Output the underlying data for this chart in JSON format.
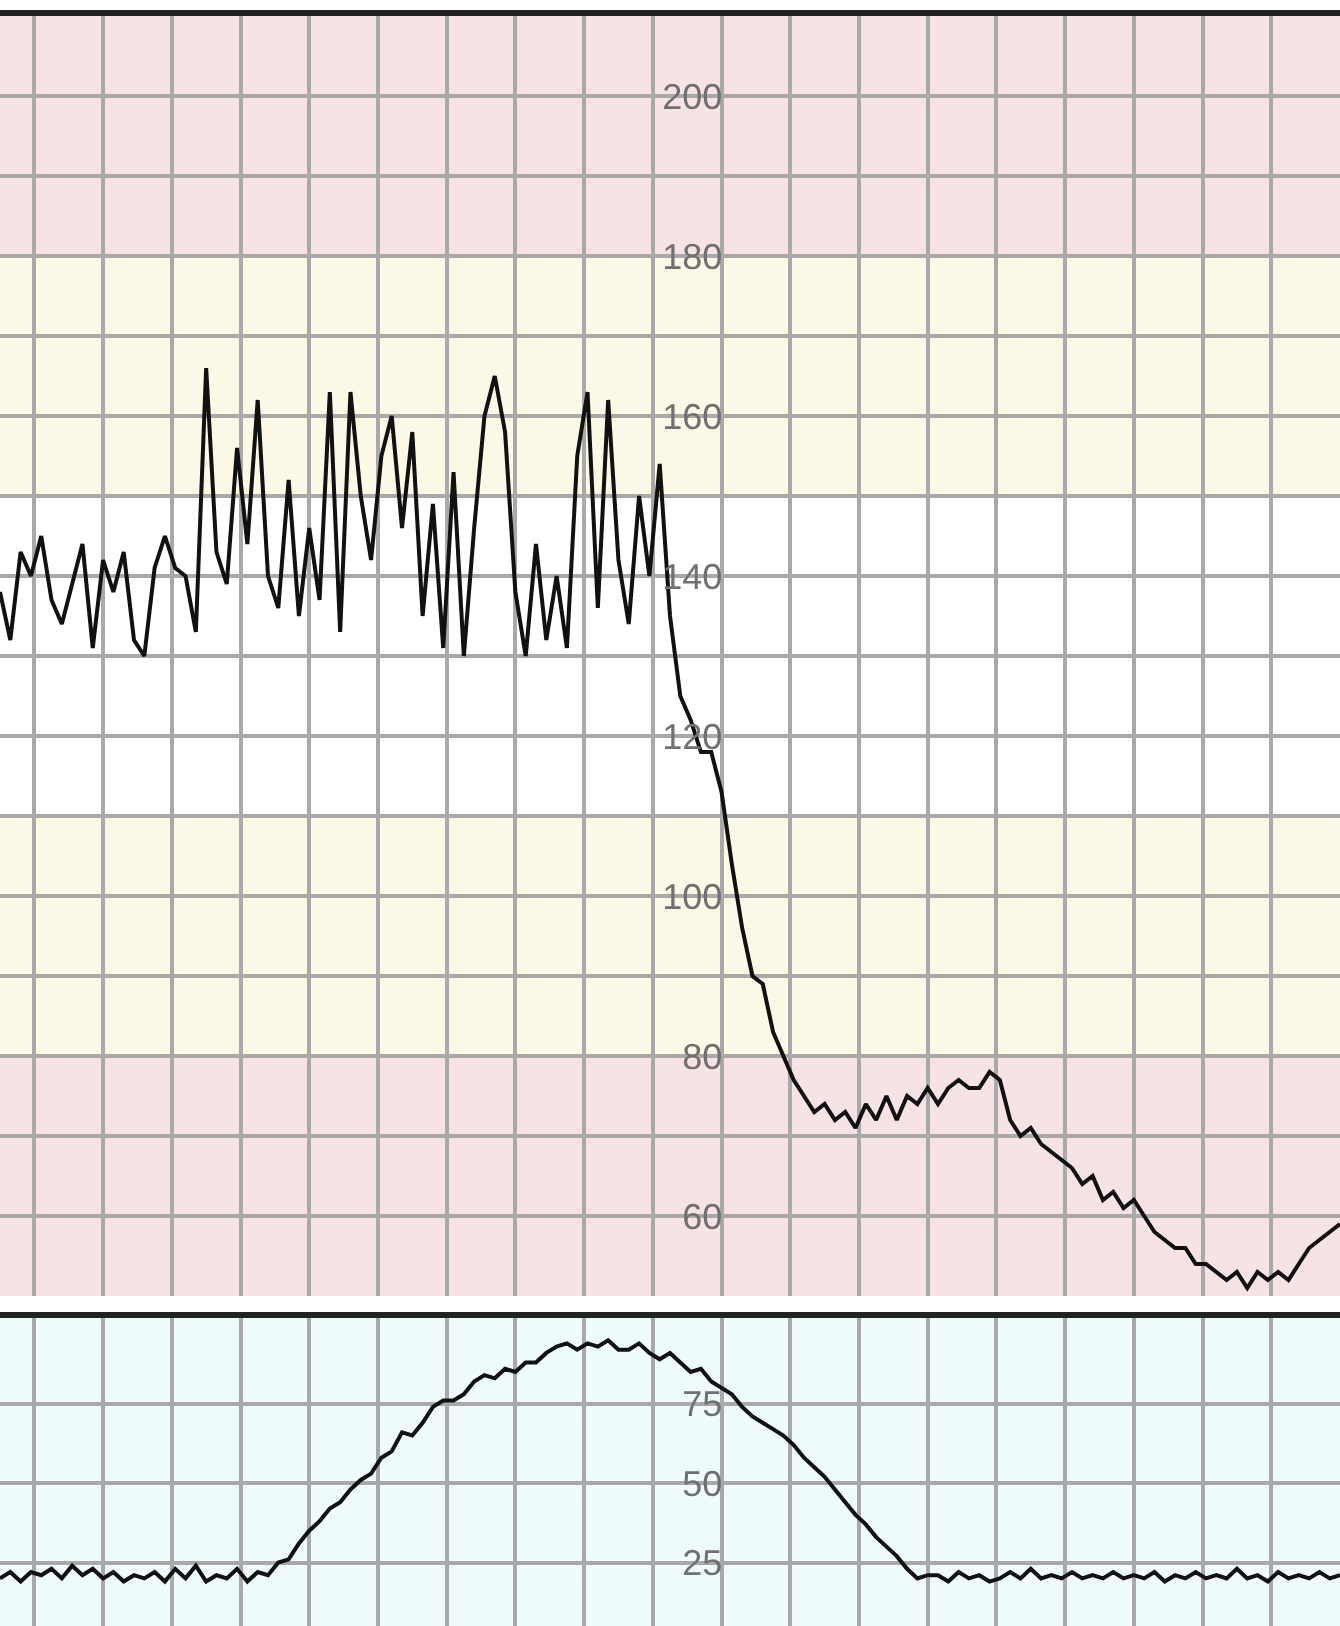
{
  "chart_data": [
    {
      "type": "line",
      "ylim": [
        50,
        210
      ],
      "categories": [
        null,
        null,
        null,
        null,
        null,
        null,
        null,
        null,
        null,
        null,
        null,
        null,
        null,
        null,
        null,
        null,
        null,
        null,
        null,
        null,
        null,
        null,
        null,
        null,
        null,
        null,
        null,
        null,
        null,
        null,
        null,
        null,
        null,
        null,
        null,
        null,
        null,
        null,
        null,
        null,
        null,
        null,
        null,
        null,
        null,
        null,
        null,
        null,
        null,
        null,
        null,
        null,
        null,
        null,
        null,
        null,
        null,
        null,
        null,
        null,
        null,
        null,
        null,
        null,
        null,
        null,
        null,
        null,
        null,
        null,
        null,
        null,
        null,
        null,
        null,
        null,
        null,
        null,
        null,
        null,
        null,
        null,
        null,
        null,
        null,
        null,
        null,
        null,
        null,
        null,
        null,
        null,
        null,
        null,
        null,
        null,
        null,
        null,
        null,
        null,
        null,
        null,
        null,
        null,
        null,
        null,
        null,
        null,
        null,
        null,
        null,
        null,
        null,
        null,
        null,
        null,
        null,
        null,
        null,
        null,
        null,
        null,
        null,
        null,
        null,
        null,
        null,
        null,
        null,
        null,
        null
      ],
      "yticks": [
        60,
        {
          "value": 70,
          "label": null
        },
        80,
        {
          "value": 90,
          "label": null
        },
        100,
        {
          "value": 110,
          "label": null
        },
        120,
        {
          "value": 130,
          "label": null
        },
        140,
        {
          "value": 150,
          "label": null
        },
        160,
        {
          "value": 170,
          "label": null
        },
        180,
        {
          "value": 190,
          "label": null
        },
        200
      ],
      "tick_labels": "y",
      "grid": true,
      "bands": [
        {
          "axis": "y",
          "from": 180,
          "to": 210,
          "color": "#f7e3e5"
        },
        {
          "axis": "y",
          "from": 150,
          "to": 180,
          "color": "#fbf9e6"
        },
        {
          "axis": "y",
          "from": 80,
          "to": 110,
          "color": "#fbf9e6"
        },
        {
          "axis": "y",
          "from": 50,
          "to": 80,
          "color": "#f7e3e5"
        }
      ],
      "series": [
        {
          "color": "#111111",
          "values": [
            138,
            132,
            143,
            140,
            145,
            137,
            134,
            139,
            144,
            131,
            142,
            138,
            143,
            132,
            130,
            141,
            145,
            141,
            140,
            133,
            166,
            143,
            139,
            156,
            144,
            162,
            140,
            136,
            152,
            135,
            146,
            137,
            163,
            133,
            163,
            150,
            142,
            155,
            160,
            146,
            158,
            135,
            149,
            131,
            153,
            130,
            146,
            160,
            165,
            158,
            138,
            130,
            144,
            132,
            140,
            131,
            155,
            163,
            136,
            162,
            142,
            134,
            150,
            140,
            154,
            135,
            125,
            122,
            118,
            118,
            113,
            104,
            96,
            90,
            89,
            83,
            80,
            77,
            75,
            73,
            74,
            72,
            73,
            71,
            74,
            72,
            75,
            72,
            75,
            74,
            76,
            74,
            76,
            77,
            76,
            76,
            78,
            77,
            72,
            70,
            71,
            69,
            68,
            67,
            66,
            64,
            65,
            62,
            63,
            61,
            62,
            60,
            58,
            57,
            56,
            56,
            54,
            54,
            53,
            52,
            53,
            51,
            53,
            52,
            53,
            52,
            54,
            56,
            57,
            58,
            59
          ]
        }
      ]
    },
    {
      "type": "line",
      "ylim": [
        5,
        102
      ],
      "categories": [
        null,
        null,
        null,
        null,
        null,
        null,
        null,
        null,
        null,
        null,
        null,
        null,
        null,
        null,
        null,
        null,
        null,
        null,
        null,
        null,
        null,
        null,
        null,
        null,
        null,
        null,
        null,
        null,
        null,
        null,
        null,
        null,
        null,
        null,
        null,
        null,
        null,
        null,
        null,
        null,
        null,
        null,
        null,
        null,
        null,
        null,
        null,
        null,
        null,
        null,
        null,
        null,
        null,
        null,
        null,
        null,
        null,
        null,
        null,
        null,
        null,
        null,
        null,
        null,
        null,
        null,
        null,
        null,
        null,
        null,
        null,
        null,
        null,
        null,
        null,
        null,
        null,
        null,
        null,
        null,
        null,
        null,
        null,
        null,
        null,
        null,
        null,
        null,
        null,
        null,
        null,
        null,
        null,
        null,
        null,
        null,
        null,
        null,
        null,
        null,
        null,
        null,
        null,
        null,
        null,
        null,
        null,
        null,
        null,
        null,
        null,
        null,
        null,
        null,
        null,
        null,
        null,
        null,
        null,
        null,
        null,
        null,
        null,
        null,
        null,
        null,
        null,
        null,
        null,
        null,
        null
      ],
      "yticks": [
        25,
        50,
        75
      ],
      "tick_labels": "y",
      "grid": true,
      "bands": [
        {
          "axis": "y",
          "from": 5,
          "to": 102,
          "color": "#eefafc"
        }
      ],
      "series": [
        {
          "color": "#111111",
          "values": [
            20,
            22,
            19,
            22,
            21,
            23,
            20,
            24,
            21,
            23,
            20,
            22,
            19,
            21,
            20,
            22,
            19,
            23,
            20,
            24,
            19,
            21,
            20,
            23,
            19,
            22,
            21,
            25,
            26,
            31,
            35,
            38,
            42,
            44,
            48,
            51,
            53,
            58,
            60,
            66,
            65,
            69,
            74,
            76,
            76,
            78,
            82,
            84,
            83,
            86,
            85,
            88,
            88,
            91,
            93,
            94,
            92,
            94,
            93,
            95,
            92,
            92,
            94,
            91,
            89,
            91,
            88,
            85,
            86,
            82,
            80,
            78,
            74,
            71,
            69,
            67,
            65,
            62,
            58,
            55,
            52,
            48,
            44,
            40,
            37,
            33,
            30,
            27,
            23,
            20,
            21,
            21,
            19,
            22,
            20,
            21,
            19,
            20,
            22,
            20,
            23,
            20,
            21,
            20,
            22,
            20,
            21,
            20,
            22,
            20,
            21,
            20,
            22,
            19,
            21,
            20,
            22,
            20,
            21,
            20,
            23,
            20,
            21,
            19,
            22,
            20,
            21,
            20,
            22,
            20,
            21
          ]
        }
      ]
    }
  ]
}
